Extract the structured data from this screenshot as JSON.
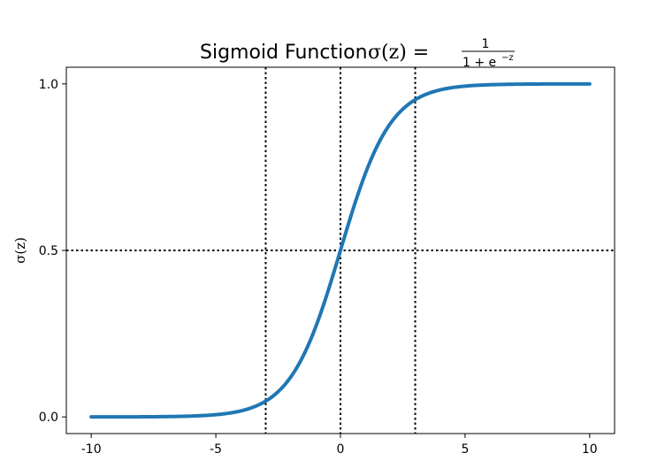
{
  "chart_data": {
    "type": "line",
    "title": "Sigmoid Function σ(z) = 1 / (1 + e^−z)",
    "title_text": "Sigmoid Function",
    "title_sigma": "σ(z) =",
    "title_fraction": {
      "numerator": "1",
      "denominator": "1 + e",
      "exponent": "−z"
    },
    "xlabel": "",
    "ylabel": "σ(z)",
    "xlim": [
      -11,
      11
    ],
    "ylim": [
      -0.05,
      1.05
    ],
    "x_ticks": [
      -10,
      -5,
      0,
      5,
      10
    ],
    "x_tick_labels": [
      "-10",
      "-5",
      "0",
      "5",
      "10"
    ],
    "y_ticks": [
      0.0,
      0.5,
      1.0
    ],
    "y_tick_labels": [
      "0.0",
      "0.5",
      "1.0"
    ],
    "grid": false,
    "series": [
      {
        "color": "#1f77b4",
        "line_style": "solid",
        "function": "1 / (1 + exp(-z))",
        "x_range": [
          -10,
          10
        ],
        "x": [
          -10,
          -8,
          -6,
          -5,
          -4,
          -3,
          -2,
          -1,
          0,
          1,
          2,
          3,
          4,
          5,
          6,
          8,
          10
        ],
        "y": [
          4.54e-05,
          0.000335,
          0.00247,
          0.00669,
          0.018,
          0.0474,
          0.119,
          0.269,
          0.5,
          0.731,
          0.881,
          0.953,
          0.982,
          0.993,
          0.998,
          0.9997,
          0.99995
        ]
      }
    ],
    "reference_lines": [
      {
        "orientation": "vertical",
        "x": -3,
        "style": "dotted",
        "color": "#000000"
      },
      {
        "orientation": "vertical",
        "x": 0,
        "style": "dotted",
        "color": "#000000"
      },
      {
        "orientation": "vertical",
        "x": 3,
        "style": "dotted",
        "color": "#000000"
      },
      {
        "orientation": "horizontal",
        "y": 0.5,
        "style": "dotted",
        "color": "#000000"
      }
    ]
  }
}
